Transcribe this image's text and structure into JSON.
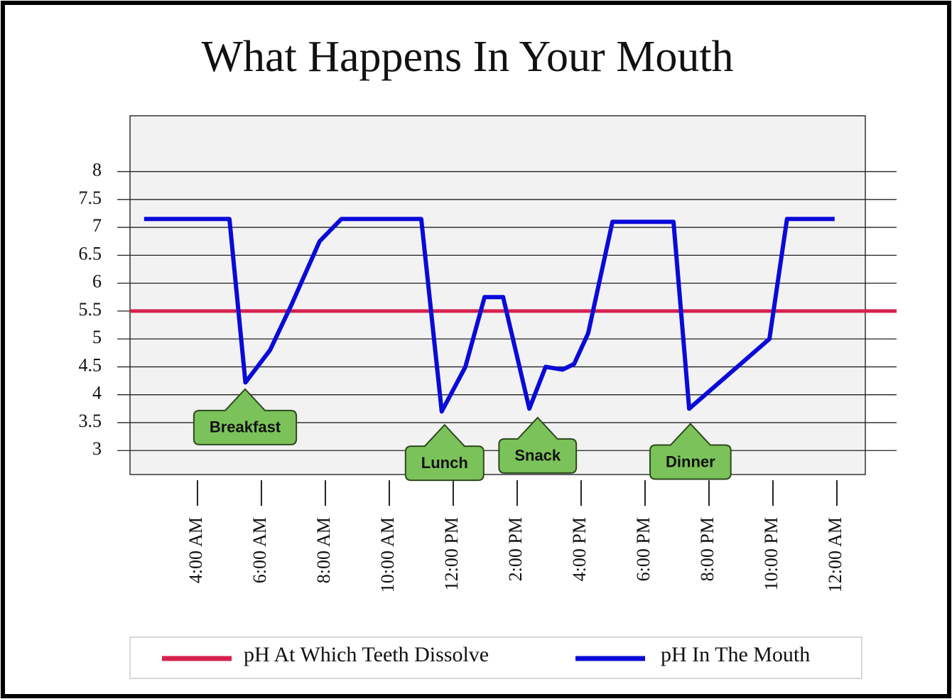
{
  "chart_data": {
    "type": "line",
    "title": "What Happens In Your Mouth",
    "xlim": [
      1.89,
      24.89
    ],
    "ylim": [
      2.57,
      9.0
    ],
    "xticks": [
      {
        "value": 4,
        "label": "4:00 AM"
      },
      {
        "value": 6,
        "label": "6:00 AM"
      },
      {
        "value": 8,
        "label": "8:00 AM"
      },
      {
        "value": 10,
        "label": "10:00 AM"
      },
      {
        "value": 12,
        "label": "12:00 PM"
      },
      {
        "value": 14,
        "label": "2:00 PM"
      },
      {
        "value": 16,
        "label": "4:00 PM"
      },
      {
        "value": 18,
        "label": "6:00 PM"
      },
      {
        "value": 20,
        "label": "8:00 PM"
      },
      {
        "value": 22,
        "label": "10:00 PM"
      },
      {
        "value": 24,
        "label": "12:00 AM"
      }
    ],
    "yticks": [
      3,
      3.5,
      4,
      4.5,
      5,
      5.5,
      6,
      6.5,
      7,
      7.5,
      8
    ],
    "grid": true,
    "series": [
      {
        "name": "pH At Which Teeth Dissolve",
        "color": "#d6204e",
        "x": [
          1.89,
          25.87
        ],
        "values": [
          5.5,
          5.5
        ]
      },
      {
        "name": "pH In The Mouth",
        "color": "#0a0ad8",
        "x": [
          2.33,
          5.0,
          5.5,
          6.27,
          6.93,
          7.82,
          8.5,
          11.0,
          11.64,
          12.38,
          12.98,
          13.56,
          14.38,
          14.89,
          15.42,
          15.78,
          16.22,
          16.98,
          18.89,
          19.38,
          21.89,
          22.44,
          23.93
        ],
        "values": [
          7.15,
          7.15,
          4.22,
          4.8,
          5.6,
          6.75,
          7.15,
          7.15,
          3.7,
          4.5,
          5.75,
          5.75,
          3.75,
          4.5,
          4.45,
          4.55,
          5.1,
          7.1,
          7.1,
          3.75,
          5.0,
          7.15,
          7.15
        ]
      }
    ],
    "annotations": [
      {
        "text": "Breakfast",
        "x": 5.49,
        "y": 4.1
      },
      {
        "text": "Lunch",
        "x": 11.73,
        "y": 3.46
      },
      {
        "text": "Snack",
        "x": 14.64,
        "y": 3.59
      },
      {
        "text": "Dinner",
        "x": 19.42,
        "y": 3.48
      }
    ]
  }
}
